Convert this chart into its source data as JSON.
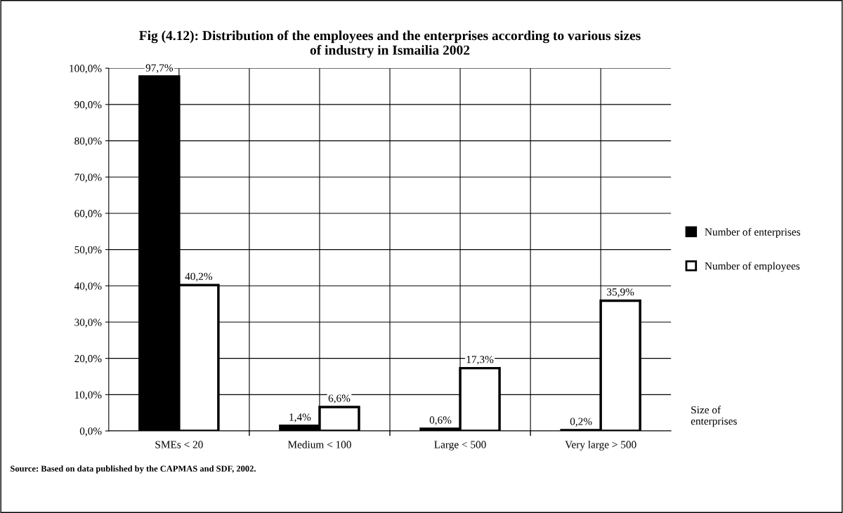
{
  "chart_data": {
    "type": "bar",
    "title": "Fig (4.12): Distribution of the employees and the enterprises according to various sizes\nof industry in Ismailia 2002",
    "xlabel": "Size of\nenterprises",
    "categories": [
      "SMEs < 20",
      "Medium < 100",
      "Large < 500",
      "Very large > 500"
    ],
    "series": [
      {
        "name": "Number of enterprises",
        "color": "#000000",
        "values": [
          97.7,
          1.4,
          0.6,
          0.2
        ],
        "value_labels": [
          "97,7%",
          "1,4%",
          "0,6%",
          "0,2%"
        ]
      },
      {
        "name": "Number of employees",
        "color": "#ffffff",
        "values": [
          40.2,
          6.6,
          17.3,
          35.9
        ],
        "value_labels": [
          "40,2%",
          "6,6%",
          "17,3%",
          "35,9%"
        ]
      }
    ],
    "ylim": [
      0,
      100
    ],
    "yticks": [
      {
        "value": 0,
        "label": "0,0%"
      },
      {
        "value": 10,
        "label": "10,0%"
      },
      {
        "value": 20,
        "label": "20,0%"
      },
      {
        "value": 30,
        "label": "30,0%"
      },
      {
        "value": 40,
        "label": "40,0%"
      },
      {
        "value": 50,
        "label": "50,0%"
      },
      {
        "value": 60,
        "label": "60,0%"
      },
      {
        "value": 70,
        "label": "70,0%"
      },
      {
        "value": 80,
        "label": "80,0%"
      },
      {
        "value": 90,
        "label": "90,0%"
      },
      {
        "value": 100,
        "label": "100,0%"
      }
    ],
    "grid": true,
    "legend": "right",
    "annotations": [
      "Source: Based on data published by the CAPMAS and SDF, 2002."
    ]
  }
}
